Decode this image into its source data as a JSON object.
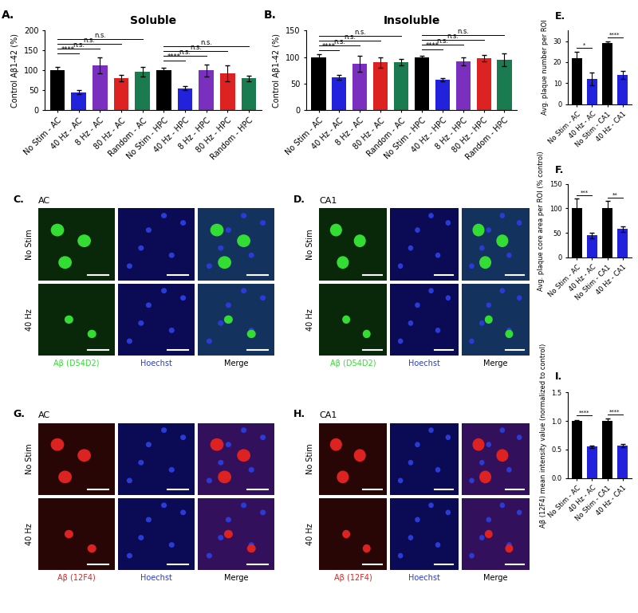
{
  "chart_data": [
    {
      "type": "bar",
      "panel_label": "A.",
      "title": "Soluble",
      "y_label": "Control Aβ1-42 (%)",
      "categories": [
        "No Stim - AC",
        "40 Hz - AC",
        "8 Hz - AC",
        "80 Hz - AC",
        "Random - AC",
        "No Stim - HPC",
        "40 Hz - HPC",
        "8 Hz - HPC",
        "80 Hz - HPC",
        "Random - HPC"
      ],
      "values": [
        100,
        45,
        112,
        80,
        97,
        100,
        55,
        100,
        92,
        80
      ],
      "errors": [
        8,
        5,
        20,
        8,
        12,
        7,
        5,
        15,
        20,
        7
      ],
      "colors": [
        "#000000",
        "#2222dd",
        "#7b2fbe",
        "#dd2222",
        "#1a7a50",
        "#000000",
        "#2222dd",
        "#7b2fbe",
        "#dd2222",
        "#1a7a50"
      ],
      "ylim": [
        0,
        200
      ],
      "yticks": [
        0,
        50,
        100,
        150,
        200
      ],
      "comparisons": [
        {
          "from": 0,
          "to": 1,
          "label": "****"
        },
        {
          "from": 0,
          "to": 2,
          "label": "n.s."
        },
        {
          "from": 0,
          "to": 3,
          "label": "n.s."
        },
        {
          "from": 0,
          "to": 4,
          "label": "n.s."
        },
        {
          "from": 5,
          "to": 6,
          "label": "****"
        },
        {
          "from": 5,
          "to": 7,
          "label": "n.s."
        },
        {
          "from": 5,
          "to": 8,
          "label": "n.s."
        },
        {
          "from": 5,
          "to": 9,
          "label": "n.s."
        }
      ]
    },
    {
      "type": "bar",
      "panel_label": "B.",
      "title": "Insoluble",
      "y_label": "Control Aβ1-42 (%)",
      "categories": [
        "No Stim - AC",
        "40 Hz - AC",
        "8 Hz - AC",
        "80 Hz - AC",
        "Random - AC",
        "No Stim - HPC",
        "40 Hz - HPC",
        "8 Hz - HPC",
        "80 Hz - HPC",
        "Random - HPC"
      ],
      "values": [
        100,
        62,
        88,
        90,
        90,
        100,
        58,
        92,
        98,
        95
      ],
      "errors": [
        5,
        5,
        15,
        10,
        6,
        3,
        3,
        8,
        6,
        12
      ],
      "colors": [
        "#000000",
        "#2222dd",
        "#7b2fbe",
        "#dd2222",
        "#1a7a50",
        "#000000",
        "#2222dd",
        "#7b2fbe",
        "#dd2222",
        "#1a7a50"
      ],
      "ylim": [
        0,
        150
      ],
      "yticks": [
        0,
        50,
        100,
        150
      ],
      "comparisons": [
        {
          "from": 0,
          "to": 1,
          "label": "****"
        },
        {
          "from": 0,
          "to": 2,
          "label": "n.s."
        },
        {
          "from": 0,
          "to": 3,
          "label": "n.s."
        },
        {
          "from": 0,
          "to": 4,
          "label": "n.s."
        },
        {
          "from": 5,
          "to": 6,
          "label": "****"
        },
        {
          "from": 5,
          "to": 7,
          "label": "n.s."
        },
        {
          "from": 5,
          "to": 8,
          "label": "n.s."
        },
        {
          "from": 5,
          "to": 9,
          "label": "n.s."
        }
      ]
    },
    {
      "type": "bar",
      "panel_label": "E.",
      "y_label": "Avg. plaque number per ROI",
      "categories": [
        "No Stim - AC",
        "40 Hz - AC",
        "No Stim - CA1",
        "40 Hz - CA1"
      ],
      "values": [
        22,
        12,
        29,
        14
      ],
      "errors": [
        3,
        3,
        1,
        2
      ],
      "colors": [
        "#000000",
        "#2222dd",
        "#000000",
        "#2222dd"
      ],
      "ylim": [
        0,
        35
      ],
      "yticks": [
        0,
        10,
        20,
        30
      ],
      "comparisons": [
        {
          "from": 0,
          "to": 1,
          "label": "*"
        },
        {
          "from": 2,
          "to": 3,
          "label": "****"
        }
      ]
    },
    {
      "type": "bar",
      "panel_label": "F.",
      "y_label": "Avg. plaque core area per ROI (% control)",
      "categories": [
        "No Stim - AC",
        "40 Hz - AC",
        "No Stim - CA1",
        "40 Hz - CA1"
      ],
      "values": [
        100,
        45,
        100,
        58
      ],
      "errors": [
        20,
        6,
        15,
        6
      ],
      "colors": [
        "#000000",
        "#2222dd",
        "#000000",
        "#2222dd"
      ],
      "ylim": [
        0,
        150
      ],
      "yticks": [
        0,
        50,
        100,
        150
      ],
      "comparisons": [
        {
          "from": 0,
          "to": 1,
          "label": "***"
        },
        {
          "from": 2,
          "to": 3,
          "label": "**"
        }
      ]
    },
    {
      "type": "bar",
      "panel_label": "I.",
      "y_label": "Aβ (12F4) mean intensity value (normalized to control)",
      "categories": [
        "No Stim - AC",
        "40 Hz - AC",
        "No Stim - CA1",
        "40 Hz - CA1"
      ],
      "values": [
        1.0,
        0.55,
        1.0,
        0.57
      ],
      "errors": [
        0.02,
        0.02,
        0.04,
        0.03
      ],
      "colors": [
        "#000000",
        "#2222dd",
        "#000000",
        "#2222dd"
      ],
      "ylim": [
        0.0,
        1.5
      ],
      "yticks": [
        0.0,
        0.5,
        1.0,
        1.5
      ],
      "comparisons": [
        {
          "from": 0,
          "to": 1,
          "label": "****"
        },
        {
          "from": 2,
          "to": 3,
          "label": "****"
        }
      ]
    }
  ],
  "images": [
    {
      "panel_label": "C.",
      "region": "AC",
      "rows": [
        "No Stim",
        "40 Hz"
      ],
      "columns": [
        "Aβ (D54D2)",
        "Hoechst",
        "Merge"
      ],
      "color": "#33dd33"
    },
    {
      "panel_label": "D.",
      "region": "CA1",
      "rows": [
        "No Stim",
        "40 Hz"
      ],
      "columns": [
        "Aβ (D54D2)",
        "Hoechst",
        "Merge"
      ],
      "color": "#33dd33"
    },
    {
      "panel_label": "G.",
      "region": "AC",
      "rows": [
        "No Stim",
        "40 Hz"
      ],
      "columns": [
        "Aβ (12F4)",
        "Hoechst",
        "Merge"
      ],
      "color": "#dd2222"
    },
    {
      "panel_label": "H.",
      "region": "CA1",
      "rows": [
        "No Stim",
        "40 Hz"
      ],
      "columns": [
        "Aβ (12F4)",
        "Hoechst",
        "Merge"
      ],
      "color": "#dd2222"
    }
  ]
}
